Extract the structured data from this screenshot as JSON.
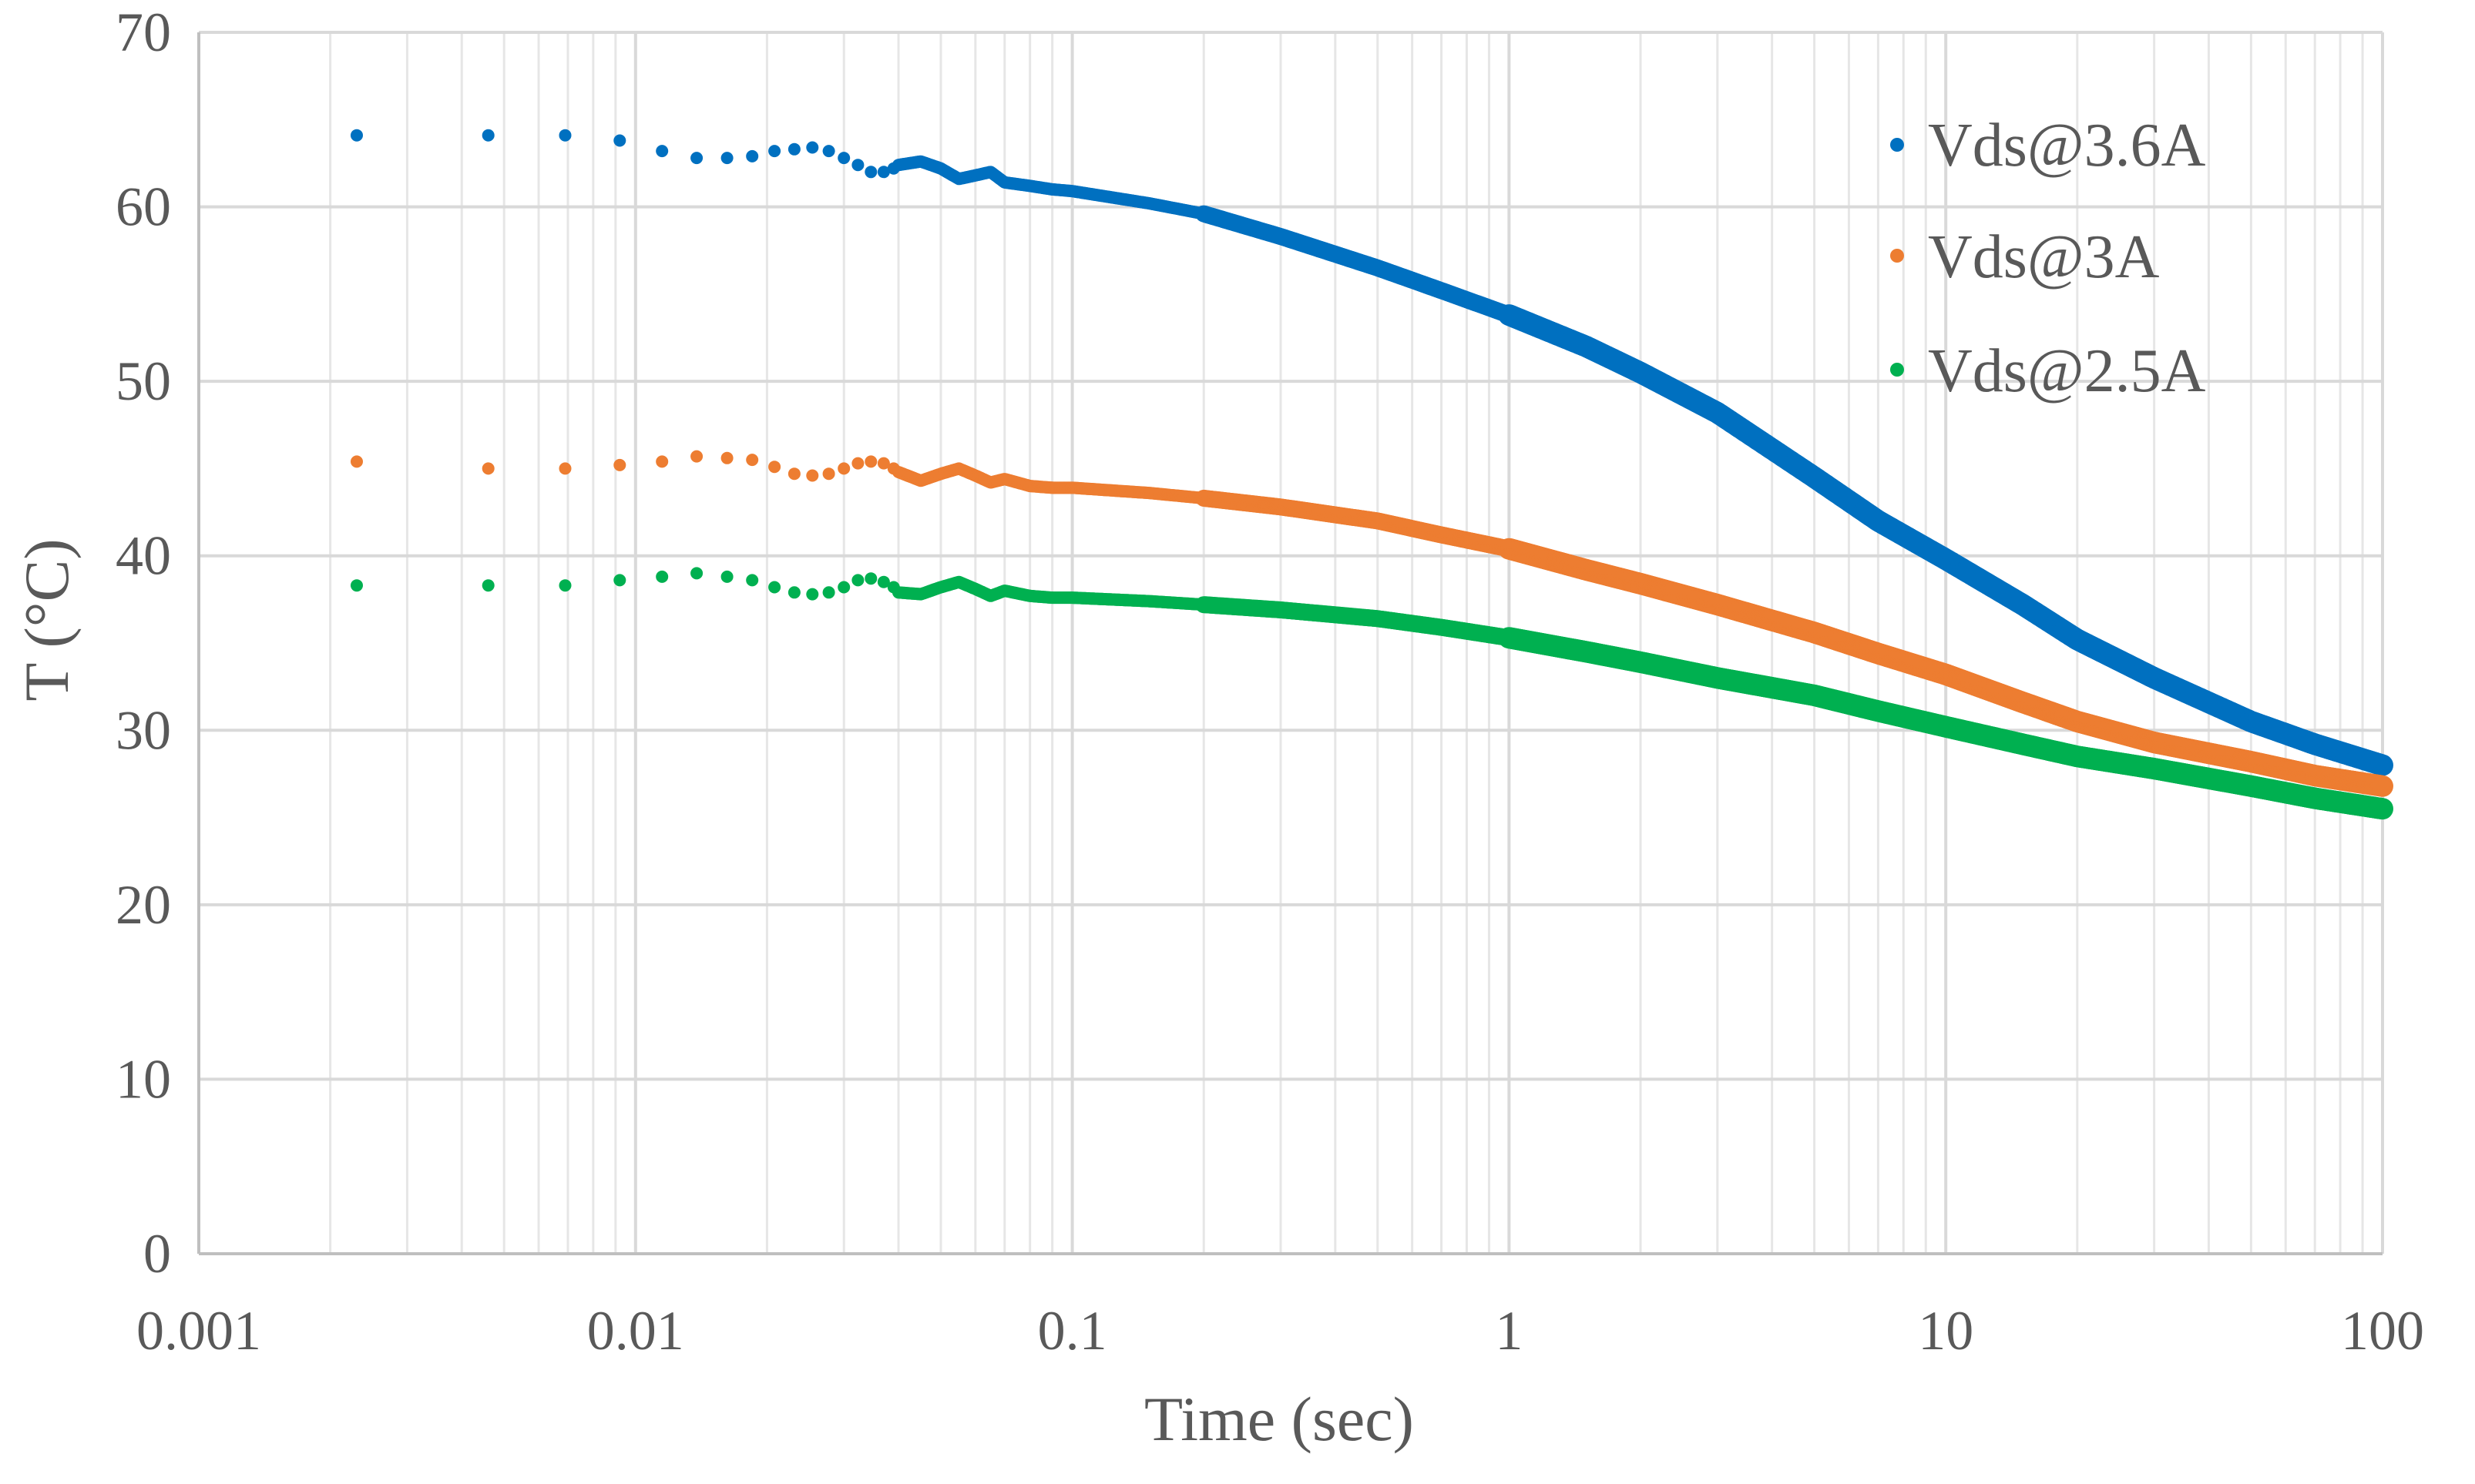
{
  "chart_data": {
    "type": "scatter",
    "title": "",
    "xlabel": "Time (sec)",
    "ylabel": "T (°C)",
    "xscale": "log",
    "xlim": [
      0.001,
      100
    ],
    "ylim": [
      0,
      70
    ],
    "x_ticks": [
      0.001,
      0.01,
      0.1,
      1,
      10,
      100
    ],
    "x_tick_labels": [
      "0.001",
      "0.01",
      "0.1",
      "1",
      "10",
      "100"
    ],
    "y_ticks": [
      0,
      10,
      20,
      30,
      40,
      50,
      60,
      70
    ],
    "y_tick_labels": [
      "0",
      "10",
      "20",
      "30",
      "40",
      "50",
      "60",
      "70"
    ],
    "grid": true,
    "legend_position": "top-right",
    "series": [
      {
        "name": "Vds@3.6A",
        "color": "#0070C0",
        "points": [
          [
            0.0023,
            64.1
          ],
          [
            0.0046,
            64.1
          ],
          [
            0.0069,
            64.1
          ],
          [
            0.0092,
            63.8
          ],
          [
            0.0115,
            63.2
          ],
          [
            0.0138,
            62.8
          ],
          [
            0.0162,
            62.8
          ],
          [
            0.0185,
            62.9
          ],
          [
            0.0208,
            63.2
          ],
          [
            0.0231,
            63.3
          ],
          [
            0.0254,
            63.4
          ],
          [
            0.0277,
            63.2
          ],
          [
            0.03,
            62.8
          ],
          [
            0.0323,
            62.4
          ],
          [
            0.0346,
            62.0
          ],
          [
            0.037,
            62.0
          ],
          [
            0.039,
            62.2
          ]
        ],
        "sampled_curve": [
          [
            0.04,
            62.4
          ],
          [
            0.045,
            62.6
          ],
          [
            0.05,
            62.2
          ],
          [
            0.055,
            61.6
          ],
          [
            0.06,
            61.8
          ],
          [
            0.065,
            62.0
          ],
          [
            0.07,
            61.4
          ],
          [
            0.08,
            61.2
          ],
          [
            0.09,
            61.0
          ],
          [
            0.1,
            60.9
          ],
          [
            0.15,
            60.2
          ],
          [
            0.2,
            59.6
          ],
          [
            0.3,
            58.3
          ],
          [
            0.5,
            56.5
          ],
          [
            0.7,
            55.2
          ],
          [
            1,
            53.8
          ],
          [
            1.5,
            52.0
          ],
          [
            2,
            50.5
          ],
          [
            3,
            48.2
          ],
          [
            5,
            44.5
          ],
          [
            7,
            42.0
          ],
          [
            10,
            39.8
          ],
          [
            15,
            37.2
          ],
          [
            20,
            35.2
          ],
          [
            30,
            33.0
          ],
          [
            50,
            30.5
          ],
          [
            70,
            29.2
          ],
          [
            100,
            28.0
          ]
        ]
      },
      {
        "name": "Vds@3A",
        "color": "#ED7D31",
        "points": [
          [
            0.0023,
            45.4
          ],
          [
            0.0046,
            45.0
          ],
          [
            0.0069,
            45.0
          ],
          [
            0.0092,
            45.2
          ],
          [
            0.0115,
            45.4
          ],
          [
            0.0138,
            45.7
          ],
          [
            0.0162,
            45.6
          ],
          [
            0.0185,
            45.5
          ],
          [
            0.0208,
            45.1
          ],
          [
            0.0231,
            44.7
          ],
          [
            0.0254,
            44.6
          ],
          [
            0.0277,
            44.7
          ],
          [
            0.03,
            45.0
          ],
          [
            0.0323,
            45.3
          ],
          [
            0.0346,
            45.4
          ],
          [
            0.037,
            45.3
          ],
          [
            0.039,
            45.0
          ]
        ],
        "sampled_curve": [
          [
            0.04,
            44.8
          ],
          [
            0.045,
            44.3
          ],
          [
            0.05,
            44.7
          ],
          [
            0.055,
            45.0
          ],
          [
            0.06,
            44.6
          ],
          [
            0.065,
            44.2
          ],
          [
            0.07,
            44.4
          ],
          [
            0.08,
            44.0
          ],
          [
            0.09,
            43.9
          ],
          [
            0.1,
            43.9
          ],
          [
            0.15,
            43.6
          ],
          [
            0.2,
            43.3
          ],
          [
            0.3,
            42.8
          ],
          [
            0.5,
            42.0
          ],
          [
            0.7,
            41.2
          ],
          [
            1,
            40.4
          ],
          [
            1.5,
            39.2
          ],
          [
            2,
            38.4
          ],
          [
            3,
            37.2
          ],
          [
            5,
            35.6
          ],
          [
            7,
            34.4
          ],
          [
            10,
            33.2
          ],
          [
            15,
            31.6
          ],
          [
            20,
            30.5
          ],
          [
            30,
            29.3
          ],
          [
            50,
            28.2
          ],
          [
            70,
            27.4
          ],
          [
            100,
            26.8
          ]
        ]
      },
      {
        "name": "Vds@2.5A",
        "color": "#00B050",
        "points": [
          [
            0.0023,
            38.3
          ],
          [
            0.0046,
            38.3
          ],
          [
            0.0069,
            38.3
          ],
          [
            0.0092,
            38.6
          ],
          [
            0.0115,
            38.8
          ],
          [
            0.0138,
            39.0
          ],
          [
            0.0162,
            38.8
          ],
          [
            0.0185,
            38.6
          ],
          [
            0.0208,
            38.2
          ],
          [
            0.0231,
            37.9
          ],
          [
            0.0254,
            37.8
          ],
          [
            0.0277,
            37.9
          ],
          [
            0.03,
            38.2
          ],
          [
            0.0323,
            38.6
          ],
          [
            0.0346,
            38.7
          ],
          [
            0.037,
            38.5
          ],
          [
            0.039,
            38.2
          ]
        ],
        "sampled_curve": [
          [
            0.04,
            37.9
          ],
          [
            0.045,
            37.8
          ],
          [
            0.05,
            38.2
          ],
          [
            0.055,
            38.5
          ],
          [
            0.06,
            38.1
          ],
          [
            0.065,
            37.7
          ],
          [
            0.07,
            38.0
          ],
          [
            0.08,
            37.7
          ],
          [
            0.09,
            37.6
          ],
          [
            0.1,
            37.6
          ],
          [
            0.15,
            37.4
          ],
          [
            0.2,
            37.2
          ],
          [
            0.3,
            36.9
          ],
          [
            0.5,
            36.4
          ],
          [
            0.7,
            35.9
          ],
          [
            1,
            35.3
          ],
          [
            1.5,
            34.5
          ],
          [
            2,
            33.9
          ],
          [
            3,
            33.0
          ],
          [
            5,
            32.0
          ],
          [
            7,
            31.1
          ],
          [
            10,
            30.2
          ],
          [
            15,
            29.2
          ],
          [
            20,
            28.5
          ],
          [
            30,
            27.8
          ],
          [
            50,
            26.8
          ],
          [
            70,
            26.1
          ],
          [
            100,
            25.5
          ]
        ]
      }
    ]
  },
  "colors": {
    "axis": "#BFBFBF",
    "major_grid": "#D9D9D9",
    "minor_grid": "#E6E6E6",
    "text": "#595959"
  }
}
